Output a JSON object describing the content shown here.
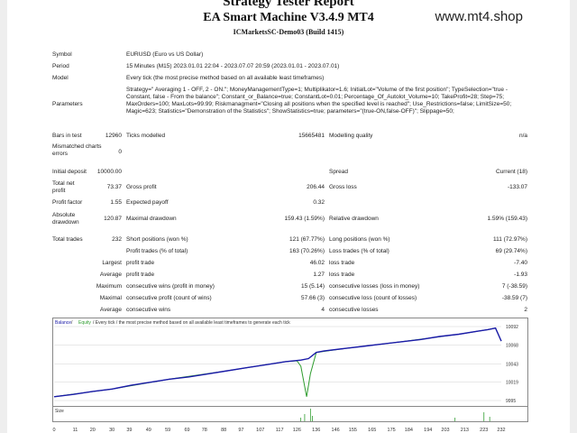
{
  "header": {
    "title": "Strategy Tester Report",
    "ea": "EA Smart Machine V3.4.9 MT4",
    "server": "ICMarketsSC-Demo03 (Build 1415)",
    "watermark": "www.mt4.shop"
  },
  "info": {
    "symbol_label": "Symbol",
    "symbol": "EURUSD (Euro vs US Dollar)",
    "period_label": "Period",
    "period": "15 Minutes (M15) 2023.01.01 22:04 - 2023.07.07 20:59 (2023.01.01 - 2023.07.01)",
    "model_label": "Model",
    "model": "Every tick (the most precise method based on all available least timeframes)",
    "parameters_label": "Parameters",
    "parameters": "Strategy=\" Averaging 1 - OFF, 2 - ON.\"; MoneyManagementType=1; Multiplikator=1.6; InitialLot=\"Volume of the first position\"; TypeSelection=\"true - Constant, false - From the balance\"; Constant_or_Balance=true; ConstantLot=0.01; Percentage_Of_Autolot_Volume=10; TakeProfit=28; Step=75; MaxOrders=100; MaxLots=99.99; Riskmanagment=\"Closing all positions when the specified level is reached\"; Use_Restrictions=false; LimitSize=50; Magic=623; Statistics=\"Demonstration of the Statistics\"; ShowStatistics=true; parameters=\"(true-ON,false-OFF)\"; Slippage=50;"
  },
  "stats": {
    "bars_label": "Bars in test",
    "bars": "12960",
    "ticks_label": "Ticks modelled",
    "ticks": "15665481",
    "quality_label": "Modelling quality",
    "quality": "n/a",
    "mismatch_label": "Mismatched charts errors",
    "mismatch": "0",
    "deposit_label": "Initial deposit",
    "deposit": "10000.00",
    "spread_label": "Spread",
    "spread": "Current (18)",
    "netprofit_label": "Total net profit",
    "netprofit": "73.37",
    "grossprofit_label": "Gross profit",
    "grossprofit": "206.44",
    "grossloss_label": "Gross loss",
    "grossloss": "-133.07",
    "pf_label": "Profit factor",
    "pf": "1.55",
    "payoff_label": "Expected payoff",
    "payoff": "0.32",
    "absdd_label": "Absolute drawdown",
    "absdd": "120.87",
    "maxdd_label": "Maximal drawdown",
    "maxdd": "159.43 (1.59%)",
    "reldd_label": "Relative drawdown",
    "reldd": "1.59% (159.43)",
    "trades_label": "Total trades",
    "trades": "232",
    "short_label": "Short positions (won %)",
    "short": "121 (67.77%)",
    "long_label": "Long positions (won %)",
    "long": "111 (72.97%)",
    "ptrades_label": "Profit trades (% of total)",
    "ptrades": "163 (70.26%)",
    "ltrades_label": "Loss trades (% of total)",
    "ltrades": "69 (29.74%)",
    "largest_label": "Largest",
    "avg_label": "Average",
    "maximal_label": "Maximal",
    "max_label": "Maximum",
    "avg2_label": "Average",
    "lpt_label": "profit trade",
    "lpt": "46.02",
    "llt_label": "loss trade",
    "llt": "-7.40",
    "apt_label": "profit trade",
    "apt": "1.27",
    "alt_label": "loss trade",
    "alt": "-1.93",
    "mcw_label": "consecutive wins (profit in money)",
    "mcw": "15 (5.14)",
    "mcl_label": "consecutive losses (loss in money)",
    "mcl": "7 (-38.59)",
    "mcp_label": "consecutive profit (count of wins)",
    "mcp": "57.66 (3)",
    "mcll_label": "consecutive loss (count of losses)",
    "mcll": "-38.59 (7)",
    "acw_label": "consecutive wins",
    "acw": "4",
    "acl_label": "consecutive losses",
    "acl": "2"
  },
  "chart_legend": {
    "balance": "Balance",
    "sep": " / ",
    "equity": "Equity",
    "rest": " / Every tick / the most precise method based on all available least timeframes to generate each tick"
  },
  "size_label": "Size",
  "chart_data": {
    "type": "line",
    "ylim": [
      9995,
      10092
    ],
    "yticks": [
      "10092",
      "10068",
      "10043",
      "10019",
      "9995"
    ],
    "xticks": [
      "0",
      "11",
      "20",
      "30",
      "39",
      "49",
      "59",
      "69",
      "78",
      "88",
      "97",
      "107",
      "117",
      "126",
      "136",
      "146",
      "155",
      "165",
      "175",
      "184",
      "194",
      "203",
      "213",
      "223",
      "232"
    ],
    "series": [
      {
        "name": "Balance",
        "color": "#1a1aa8",
        "x": [
          0,
          10,
          20,
          30,
          40,
          50,
          60,
          70,
          80,
          90,
          100,
          110,
          120,
          128,
          132,
          136,
          140,
          150,
          160,
          170,
          180,
          190,
          200,
          210,
          220,
          225,
          229,
          232
        ],
        "y": [
          10000,
          10003,
          10007,
          10010,
          10015,
          10019,
          10023,
          10026,
          10030,
          10034,
          10038,
          10042,
          10046,
          10048,
          10050,
          10058,
          10060,
          10063,
          10066,
          10069,
          10072,
          10075,
          10079,
          10082,
          10086,
          10088,
          10090,
          10073
        ]
      },
      {
        "name": "Equity",
        "color": "#2e9c2e",
        "x": [
          0,
          30,
          60,
          90,
          120,
          126,
          128,
          131,
          133,
          136,
          150,
          180,
          210,
          225,
          229,
          232
        ],
        "y": [
          10000,
          10010,
          10023,
          10034,
          10046,
          10047,
          10040,
          10000,
          10030,
          10058,
          10063,
          10072,
          10082,
          10088,
          10090,
          10073
        ]
      }
    ]
  },
  "colors": {
    "balance": "#1a1aa8",
    "equity": "#2e9c2e",
    "grid": "#d0d0d0",
    "frame": "#888888"
  }
}
